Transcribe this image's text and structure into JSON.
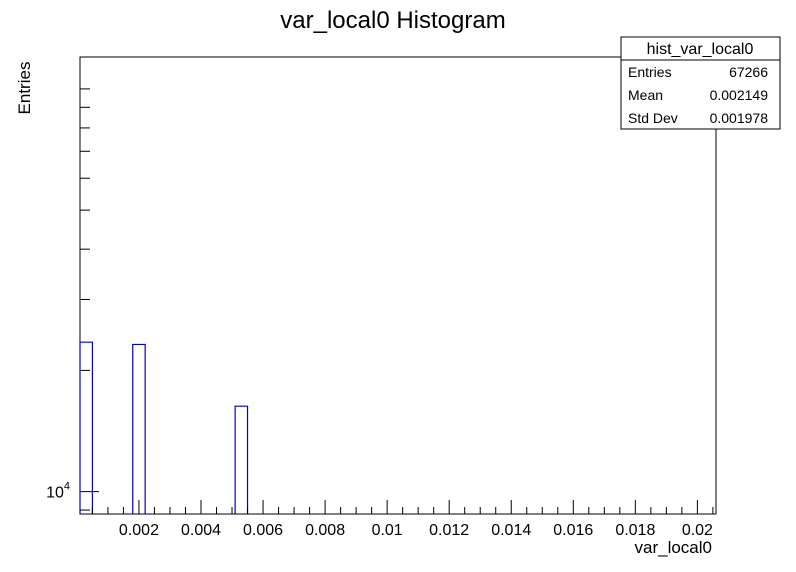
{
  "chart_data": {
    "type": "bar",
    "title": "var_local0 Histogram",
    "xlabel": "var_local0",
    "ylabel": "Entries",
    "xlim": [
      0.0001,
      0.0206
    ],
    "ylim": [
      8800,
      120000
    ],
    "y_log": true,
    "bin_width": 0.0004,
    "x_ticks": [
      "0.002",
      "0.004",
      "0.006",
      "0.008",
      "0.01",
      "0.012",
      "0.014",
      "0.016",
      "0.018",
      "0.02"
    ],
    "y_tick_label": {
      "base": "10",
      "exp": "4"
    },
    "bars": [
      {
        "x_low": 0.0001,
        "x_high": 0.0005,
        "value": 23500
      },
      {
        "x_low": 0.0018,
        "x_high": 0.0022,
        "value": 23200
      },
      {
        "x_low": 0.0051,
        "x_high": 0.0055,
        "value": 16300
      }
    ],
    "bar_color": "#0000cc",
    "legend_position": "top-right",
    "stats": {
      "name": "hist_var_local0",
      "rows": [
        {
          "label": "Entries",
          "value": "67266"
        },
        {
          "label": "Mean",
          "value": "0.002149"
        },
        {
          "label": "Std Dev",
          "value": "0.001978"
        }
      ]
    }
  }
}
